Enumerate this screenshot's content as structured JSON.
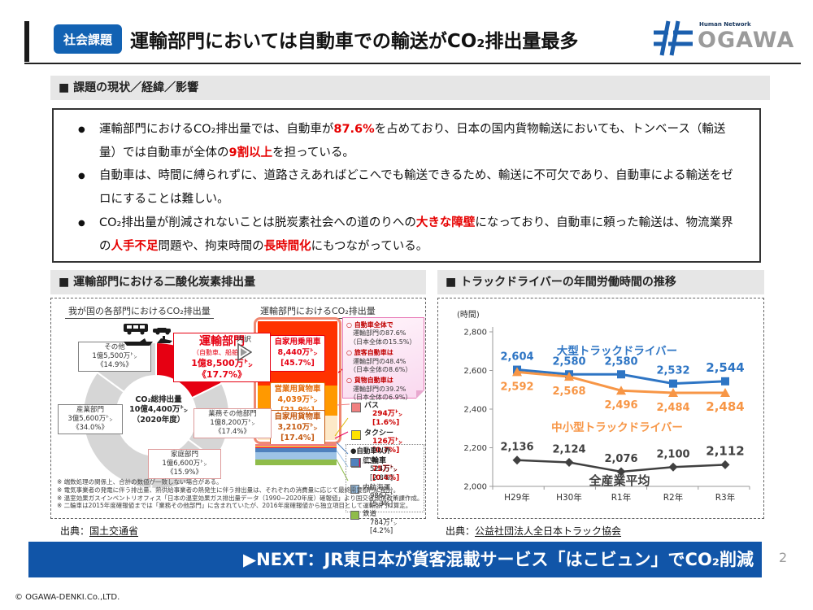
{
  "header": {
    "badge": "社会課題",
    "title": "運輸部門においては自動車での輸送がCO₂排出量最多",
    "logo_sub": "Human Network",
    "logo_main": "OGAWA"
  },
  "section_title": "■ 課題の現状／経緯／影響",
  "bullets": [
    {
      "parts": [
        {
          "t": "運輸部門におけるCO₂排出量では、自動車が"
        },
        {
          "t": "87.6%",
          "red": true
        },
        {
          "t": "を占めており、日本の国内貨物輸送においても、トンベース（輸送量）では自動車が全体の"
        },
        {
          "t": "9割以上",
          "red": true
        },
        {
          "t": "を担っている。"
        }
      ]
    },
    {
      "parts": [
        {
          "t": "自動車は、時間に縛られずに、道路さえあればどこへでも輸送できるため、輸送に不可欠であり、自動車による輸送をゼロにすることは難しい。"
        }
      ]
    },
    {
      "parts": [
        {
          "t": "CO₂排出量が削減されないことは脱炭素社会への道のりへの"
        },
        {
          "t": "大きな障壁",
          "red": true
        },
        {
          "t": "になっており、自動車に頼った輸送は、物流業界の"
        },
        {
          "t": "人手不足",
          "red": true
        },
        {
          "t": "問題や、拘束時間の"
        },
        {
          "t": "長時間化",
          "red": true
        },
        {
          "t": "にもつながっている。"
        }
      ]
    }
  ],
  "left_panel": {
    "header": "■ 運輸部門における二酸化炭素排出量",
    "uchiwake_label": "内訳",
    "note_items": [
      {
        "head": "○ 自動車全体で",
        "l1": "運輸部門の87.6%",
        "l2": "（日本全体の15.5%）"
      },
      {
        "head": "○ 旅客自動車は",
        "l1": "運輸部門の48.4%",
        "l2": "（日本全体の8.6%）"
      },
      {
        "head": "○ 貨物自動車は",
        "l1": "運輸部門の39.2%",
        "l2": "（日本全体の6.9%）"
      }
    ],
    "legend_auto": [
      {
        "label": "バス",
        "value": "294万㌧ [1.6%]",
        "color": "#f08080"
      },
      {
        "label": "タクシー",
        "value": "126万㌧ [0.7%]",
        "color": "#ffe100"
      },
      {
        "label": "二輪車",
        "value": "75万㌧ [0.4%]",
        "color": "#e6005c"
      }
    ],
    "legend_other_title": "●自動車以外",
    "legend_other": [
      {
        "label": "航空",
        "value": "524万㌧ [2.8%]",
        "color": "#4f81bd"
      },
      {
        "label": "内航海運",
        "value": "986万㌧ [5.3%]",
        "color": "#9dc3e6"
      },
      {
        "label": "鉄道",
        "value": "784万㌧ [4.2%]",
        "color": "#8fbc4a"
      }
    ],
    "footnotes": [
      "※ 端数処理の関係上、合計の数値が一致しない場合がある。",
      "※ 電気事業者の発電に伴う排出量、熱供給事業者の熱発生に伴う排出量は、それぞれの消費量に応じて最終需要部門に配分。",
      "※ 温室効果ガスインベントリオフィス「日本の温室効果ガス排出量データ（1990~2020年度）確報値」より国交省環境政策課作成。",
      "※ 二輪車は2015年度確報値までは「業務その他部門」に含まれていたが、2016年度確報値から独立項目として運輸部門に算定。"
    ],
    "source_prefix": "出典：",
    "source": "国土交通省"
  },
  "right_panel": {
    "header": "■ トラックドライバーの年間労働時間の推移",
    "source_prefix": "出典：",
    "source": "公益社団法人全日本トラック協会"
  },
  "chart_data": [
    {
      "type": "pie",
      "title": "我が国の各部門におけるCO₂排出量",
      "center": {
        "line1": "CO₂総排出量",
        "line2": "10億4,400万㌧",
        "line3": "（2020年度）"
      },
      "segments": [
        {
          "label": "運輸部門",
          "sublabel": "（自動車、船舶等）",
          "value_label": "1億8,500万㌧",
          "pct": 17.7,
          "pct_label": "《17.7%》",
          "color": "#e60012"
        },
        {
          "label": "業務その他部門",
          "value_label": "1億8,200万㌧",
          "pct": 17.4,
          "pct_label": "《17.4%》",
          "color": "#d6d6d6"
        },
        {
          "label": "家庭部門",
          "value_label": "1億6,600万㌧",
          "pct": 15.9,
          "pct_label": "《15.9%》",
          "color": "#d6d6d6"
        },
        {
          "label": "産業部門",
          "value_label": "3億5,600万㌧",
          "pct": 34.0,
          "pct_label": "《34.0%》",
          "color": "#d6d6d6"
        },
        {
          "label": "その他",
          "value_label": "1億5,500万㌧",
          "pct": 14.9,
          "pct_label": "《14.9%》",
          "color": "#d6d6d6"
        }
      ]
    },
    {
      "type": "bar",
      "title": "運輸部門におけるCO₂排出量",
      "segments": [
        {
          "label": "自家用乗用車",
          "value_label": "8,440万㌧",
          "pct": 45.7,
          "pct_label": "[45.7%]",
          "color": "#ff3200",
          "text_color": "#e60012",
          "boxed": true
        },
        {
          "label": "営業用貨物車",
          "value_label": "4,039万㌧",
          "pct": 21.9,
          "pct_label": "[21.9%]",
          "color": "#ff9900",
          "text_color": "#e36c09",
          "boxed": true
        },
        {
          "label": "自家用貨物車",
          "value_label": "3,210万㌧",
          "pct": 17.4,
          "pct_label": "[17.4%]",
          "color": "#fde9c8",
          "text_color": "#c55a11",
          "boxed": true
        },
        {
          "label": "バス",
          "pct": 1.6,
          "color": "#f08080"
        },
        {
          "label": "タクシー",
          "pct": 0.7,
          "color": "#ffe100"
        },
        {
          "label": "二輪車",
          "pct": 0.4,
          "color": "#e6005c"
        },
        {
          "label": "航空",
          "pct": 2.8,
          "color": "#4f81bd"
        },
        {
          "label": "内航海運",
          "pct": 5.3,
          "color": "#9dc3e6"
        },
        {
          "label": "鉄道",
          "pct": 4.2,
          "color": "#8fbc4a"
        }
      ]
    },
    {
      "type": "line",
      "title": "トラックドライバーの年間労働時間の推移",
      "ylabel": "(時間)",
      "ylim": [
        2000,
        2800
      ],
      "ytick_step": 200,
      "categories": [
        "H29年",
        "H30年",
        "R1年",
        "R2年",
        "R3年"
      ],
      "series": [
        {
          "name": "大型トラックドライバー",
          "color": "#2e75c4",
          "marker": "square",
          "values": [
            2604,
            2580,
            2580,
            2532,
            2544
          ]
        },
        {
          "name": "中小型トラックドライバー",
          "color": "#f79646",
          "marker": "triangle",
          "values": [
            2592,
            2568,
            2496,
            2484,
            2484
          ]
        },
        {
          "name": "全産業平均",
          "color": "#404040",
          "marker": "diamond",
          "values": [
            2136,
            2124,
            2076,
            2100,
            2112
          ]
        }
      ],
      "legend_position": "inline-annotations",
      "grid": false
    }
  ],
  "next_banner": {
    "arrow": "▶",
    "text": "NEXT：JR東日本が貨客混載サービス「はこビュン」でCO₂削減"
  },
  "page_number": "2",
  "footer": "© OGAWA-DENKI.Co.,LTD."
}
